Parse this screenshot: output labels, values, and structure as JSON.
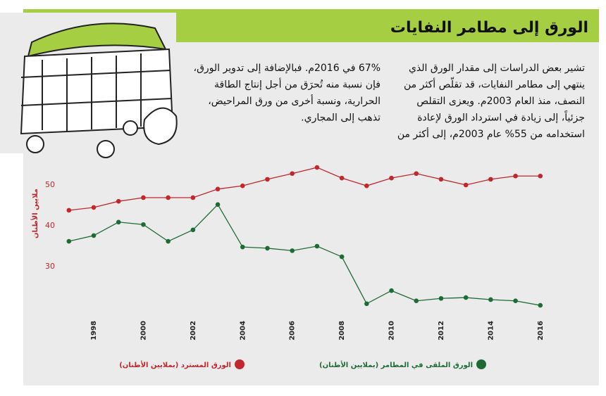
{
  "chart_data": {
    "type": "line",
    "title": "الورق إلى مطامر النفايات",
    "description": [
      [
        "تشير بعض الدراسات إلى مقدار الورق الذي",
        "ينتهي إلى مطامر النفايات، قد تقلّص أكثر من",
        "النصف، منذ العام 2003م. ويعزى التقلص",
        "جزئياً، إلى زيادة في استرداد الورق لإعادة",
        "استخدامه من 55% عام 2003م، إلى أكثر من"
      ],
      [
        "67% في 2016م. فبالإضافة إلى تدوير الورق،",
        "فإن نسبة منه تُحرَق من أجل إنتاج الطاقة",
        "الحرارية، ونسبة أخرى من ورق المراحيض،",
        "تذهب إلى المجاري."
      ]
    ],
    "y_label": "ملايين الأطنان",
    "x": [
      1997,
      1998,
      1999,
      2000,
      2001,
      2002,
      2003,
      2004,
      2005,
      2006,
      2007,
      2008,
      2009,
      2010,
      2011,
      2012,
      2013,
      2014,
      2015,
      2016
    ],
    "series": [
      {
        "name": "الورق المسترد (بملايين الأطنان)",
        "color": "#c1272d",
        "values": [
          43.8,
          44.5,
          46.0,
          46.9,
          46.9,
          46.9,
          49.0,
          49.8,
          51.4,
          52.8,
          54.3,
          51.7,
          49.8,
          51.7,
          52.8,
          51.4,
          50.0,
          51.4,
          52.2,
          52.2
        ]
      },
      {
        "name": "الورق الملقى في المطامر (بملايين الأطنان)",
        "color": "#1e6b35",
        "values": [
          36.2,
          37.6,
          40.9,
          40.3,
          36.2,
          39.0,
          45.2,
          34.8,
          34.5,
          33.9,
          35.0,
          32.4,
          20.9,
          24.1,
          21.6,
          22.2,
          22.4,
          21.9,
          21.6,
          20.5
        ]
      }
    ],
    "xlim": [
      1996,
      2017
    ],
    "xticks": [
      1998,
      2000,
      2002,
      2004,
      2006,
      2008,
      2010,
      2012,
      2014,
      2016
    ],
    "ylim": [
      18,
      56
    ],
    "yticks": [
      30,
      40,
      50
    ],
    "grid": false
  }
}
